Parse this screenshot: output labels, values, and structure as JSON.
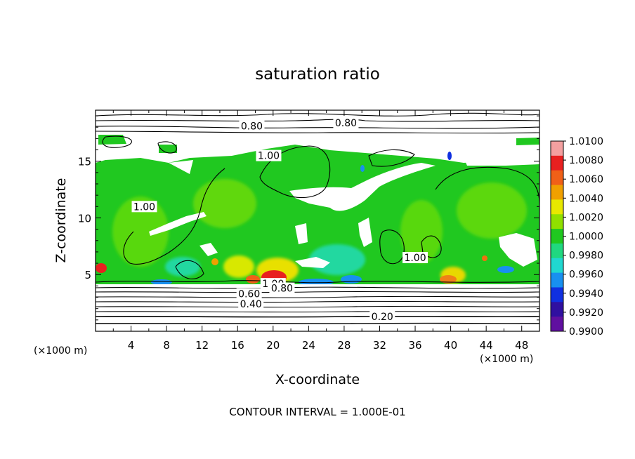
{
  "chart_data": {
    "type": "heatmap",
    "title": "saturation ratio",
    "xlabel": "X-coordinate",
    "ylabel": "Z-coordinate",
    "x_unit": "(×1000 m)",
    "y_unit": "(×1000 m)",
    "xlim": [
      0,
      50
    ],
    "ylim": [
      0,
      19.5
    ],
    "x_ticks": [
      4,
      8,
      12,
      16,
      20,
      24,
      28,
      32,
      36,
      40,
      44,
      48
    ],
    "y_ticks": [
      5,
      10,
      15
    ],
    "footer": "CONTOUR INTERVAL = 1.000E-01",
    "colorbar": {
      "min": 0.99,
      "max": 1.01,
      "labels": [
        "1.0100",
        "1.0080",
        "1.0060",
        "1.0040",
        "1.0020",
        "1.0000",
        "0.9980",
        "0.9960",
        "0.9940",
        "0.9920",
        "0.9900"
      ],
      "colors": [
        "#f4a0a0",
        "#e82020",
        "#f06018",
        "#f0a000",
        "#e8e800",
        "#90e000",
        "#20c820",
        "#20d880",
        "#20d8d0",
        "#1890f0",
        "#1030e0",
        "#3010a0",
        "#6010a0"
      ]
    },
    "contour_labels": [
      {
        "text": "0.80",
        "x": 17.6,
        "z": 18.1
      },
      {
        "text": "0.80",
        "x": 28.2,
        "z": 18.4
      },
      {
        "text": "1.00",
        "x": 19.5,
        "z": 15.5
      },
      {
        "text": "1.00",
        "x": 5.5,
        "z": 11.0
      },
      {
        "text": "1.00",
        "x": 36.0,
        "z": 6.5
      },
      {
        "text": "1.00",
        "x": 20.0,
        "z": 4.2
      },
      {
        "text": "0.80",
        "x": 21.0,
        "z": 3.8
      },
      {
        "text": "0.60",
        "x": 17.3,
        "z": 3.3
      },
      {
        "text": "0.40",
        "x": 17.5,
        "z": 2.4
      },
      {
        "text": "0.20",
        "x": 32.3,
        "z": 1.3
      }
    ]
  }
}
